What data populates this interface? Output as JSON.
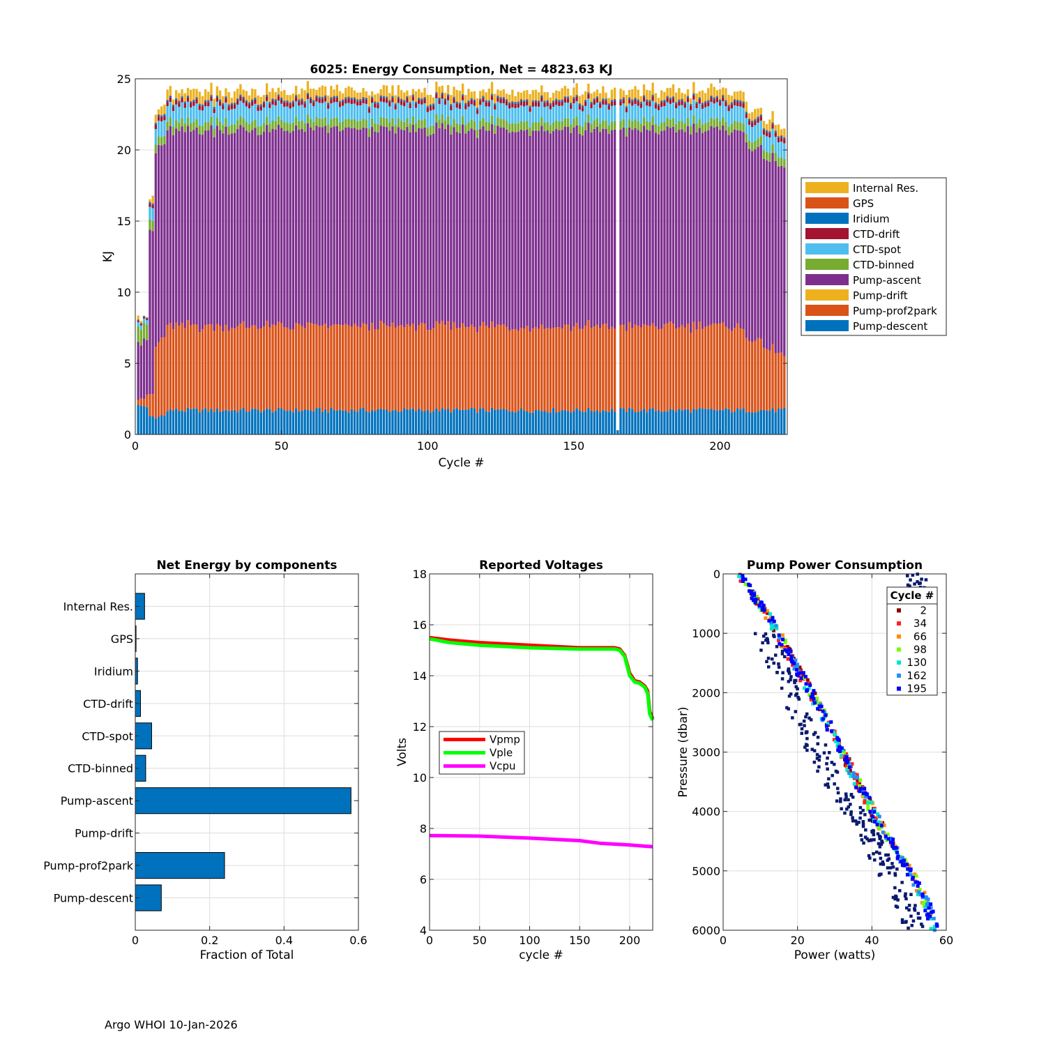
{
  "footer_text": "Argo WHOI 10-Jan-2026",
  "chart_data": [
    {
      "id": "energy",
      "type": "bar",
      "stacked": true,
      "title": "6025: Energy Consumption,  Net = 4823.63 KJ",
      "xlabel": "Cycle #",
      "ylabel": "KJ",
      "xlim": [
        0,
        223
      ],
      "ylim": [
        0,
        25
      ],
      "xticks": [
        0,
        50,
        100,
        150,
        200
      ],
      "yticks": [
        0,
        5,
        10,
        15,
        20,
        25
      ],
      "n_cycles": 223,
      "legend": [
        "Internal Res.",
        "GPS",
        "Iridium",
        "CTD-drift",
        "CTD-spot",
        "CTD-binned",
        "Pump-ascent",
        "Pump-drift",
        "Pump-prof2park",
        "Pump-descent"
      ],
      "colors": {
        "Internal Res.": "#EDB120",
        "GPS": "#D95319",
        "Iridium": "#0072BD",
        "CTD-drift": "#A2142F",
        "CTD-spot": "#4DBEEE",
        "CTD-binned": "#77AC30",
        "Pump-ascent": "#7E2F8E",
        "Pump-drift": "#EDB120",
        "Pump-prof2park": "#D95319",
        "Pump-descent": "#0072BD"
      },
      "typical_stack_kj": {
        "Pump-descent": 1.7,
        "Pump-prof2park": 5.9,
        "Pump-drift": 0.0,
        "Pump-ascent": 13.8,
        "CTD-binned": 0.6,
        "CTD-spot": 1.1,
        "CTD-drift": 0.3,
        "Iridium": 0.1,
        "GPS": 0.05,
        "Internal Res.": 0.6
      },
      "early_cycle_totals_kj": [
        7.7,
        8.1,
        8.0,
        8.4,
        15.9,
        16.2,
        21.8,
        22.3,
        22.6,
        23.1,
        23.3,
        23.9
      ]
    },
    {
      "id": "net_energy",
      "type": "bar",
      "orientation": "horizontal",
      "title": "Net Energy by components",
      "xlabel": "Fraction of Total",
      "xlim": [
        0,
        0.6
      ],
      "xticks": [
        0,
        0.2,
        0.4,
        0.6
      ],
      "xtick_labels": [
        "0",
        "0.2",
        "0.4",
        "0.6"
      ],
      "categories": [
        "Internal Res.",
        "GPS",
        "Iridium",
        "CTD-drift",
        "CTD-spot",
        "CTD-binned",
        "Pump-ascent",
        "Pump-drift",
        "Pump-prof2park",
        "Pump-descent"
      ],
      "values": [
        0.025,
        0.002,
        0.006,
        0.014,
        0.044,
        0.028,
        0.58,
        0.0,
        0.24,
        0.07
      ],
      "color": "#0072BD"
    },
    {
      "id": "voltages",
      "type": "line",
      "title": "Reported Voltages",
      "xlabel": "cycle #",
      "ylabel": "Volts",
      "xlim": [
        0,
        223
      ],
      "ylim": [
        4,
        18
      ],
      "xticks": [
        0,
        50,
        100,
        150,
        200
      ],
      "yticks": [
        4,
        6,
        8,
        10,
        12,
        14,
        16,
        18
      ],
      "series": [
        {
          "name": "Vpmp",
          "color": "#FF0000",
          "x": [
            0,
            20,
            50,
            100,
            150,
            170,
            185,
            190,
            195,
            200,
            205,
            210,
            215,
            218,
            220,
            223
          ],
          "y": [
            15.5,
            15.4,
            15.3,
            15.2,
            15.1,
            15.1,
            15.1,
            15.05,
            14.8,
            14.1,
            13.8,
            13.75,
            13.6,
            13.4,
            12.6,
            12.3
          ]
        },
        {
          "name": "Vple",
          "color": "#00FF00",
          "x": [
            0,
            20,
            50,
            100,
            150,
            170,
            185,
            190,
            195,
            200,
            205,
            210,
            215,
            218,
            220,
            223
          ],
          "y": [
            15.45,
            15.3,
            15.2,
            15.1,
            15.05,
            15.05,
            15.05,
            15.0,
            14.75,
            14.0,
            13.75,
            13.7,
            13.55,
            13.3,
            12.5,
            12.25
          ]
        },
        {
          "name": "Vcpu",
          "color": "#FF00FF",
          "x": [
            0,
            50,
            100,
            150,
            170,
            200,
            223
          ],
          "y": [
            7.72,
            7.7,
            7.62,
            7.52,
            7.42,
            7.35,
            7.28
          ]
        }
      ]
    },
    {
      "id": "pump_power",
      "type": "scatter",
      "title": "Pump Power Consumption",
      "xlabel": "Power (watts)",
      "ylabel": "Pressure (dbar)",
      "xlim": [
        0,
        60
      ],
      "ylim": [
        6000,
        0
      ],
      "xticks": [
        0,
        20,
        40,
        60
      ],
      "yticks": [
        0,
        1000,
        2000,
        3000,
        4000,
        5000,
        6000
      ],
      "legend_title": "Cycle #",
      "series": [
        {
          "name": "2",
          "color": "#8B0000"
        },
        {
          "name": "34",
          "color": "#FF2020"
        },
        {
          "name": "66",
          "color": "#FF8C00"
        },
        {
          "name": "98",
          "color": "#7CFC00"
        },
        {
          "name": "130",
          "color": "#00E5D0"
        },
        {
          "name": "162",
          "color": "#1E90FF"
        },
        {
          "name": "195",
          "color": "#0000FF"
        }
      ],
      "trend_power_vs_pressure": [
        [
          4,
          0
        ],
        [
          12,
          700
        ],
        [
          20,
          1600
        ],
        [
          28,
          2500
        ],
        [
          36,
          3500
        ],
        [
          42,
          4200
        ],
        [
          48,
          4800
        ],
        [
          52,
          5200
        ],
        [
          55,
          5600
        ],
        [
          57,
          6000
        ]
      ],
      "offtrend_cloud": [
        [
          12,
          900
        ],
        [
          18,
          1700
        ],
        [
          26,
          2800
        ],
        [
          32,
          3600
        ],
        [
          40,
          4200
        ],
        [
          46,
          5000
        ],
        [
          50,
          5400
        ],
        [
          54,
          6000
        ]
      ]
    }
  ]
}
